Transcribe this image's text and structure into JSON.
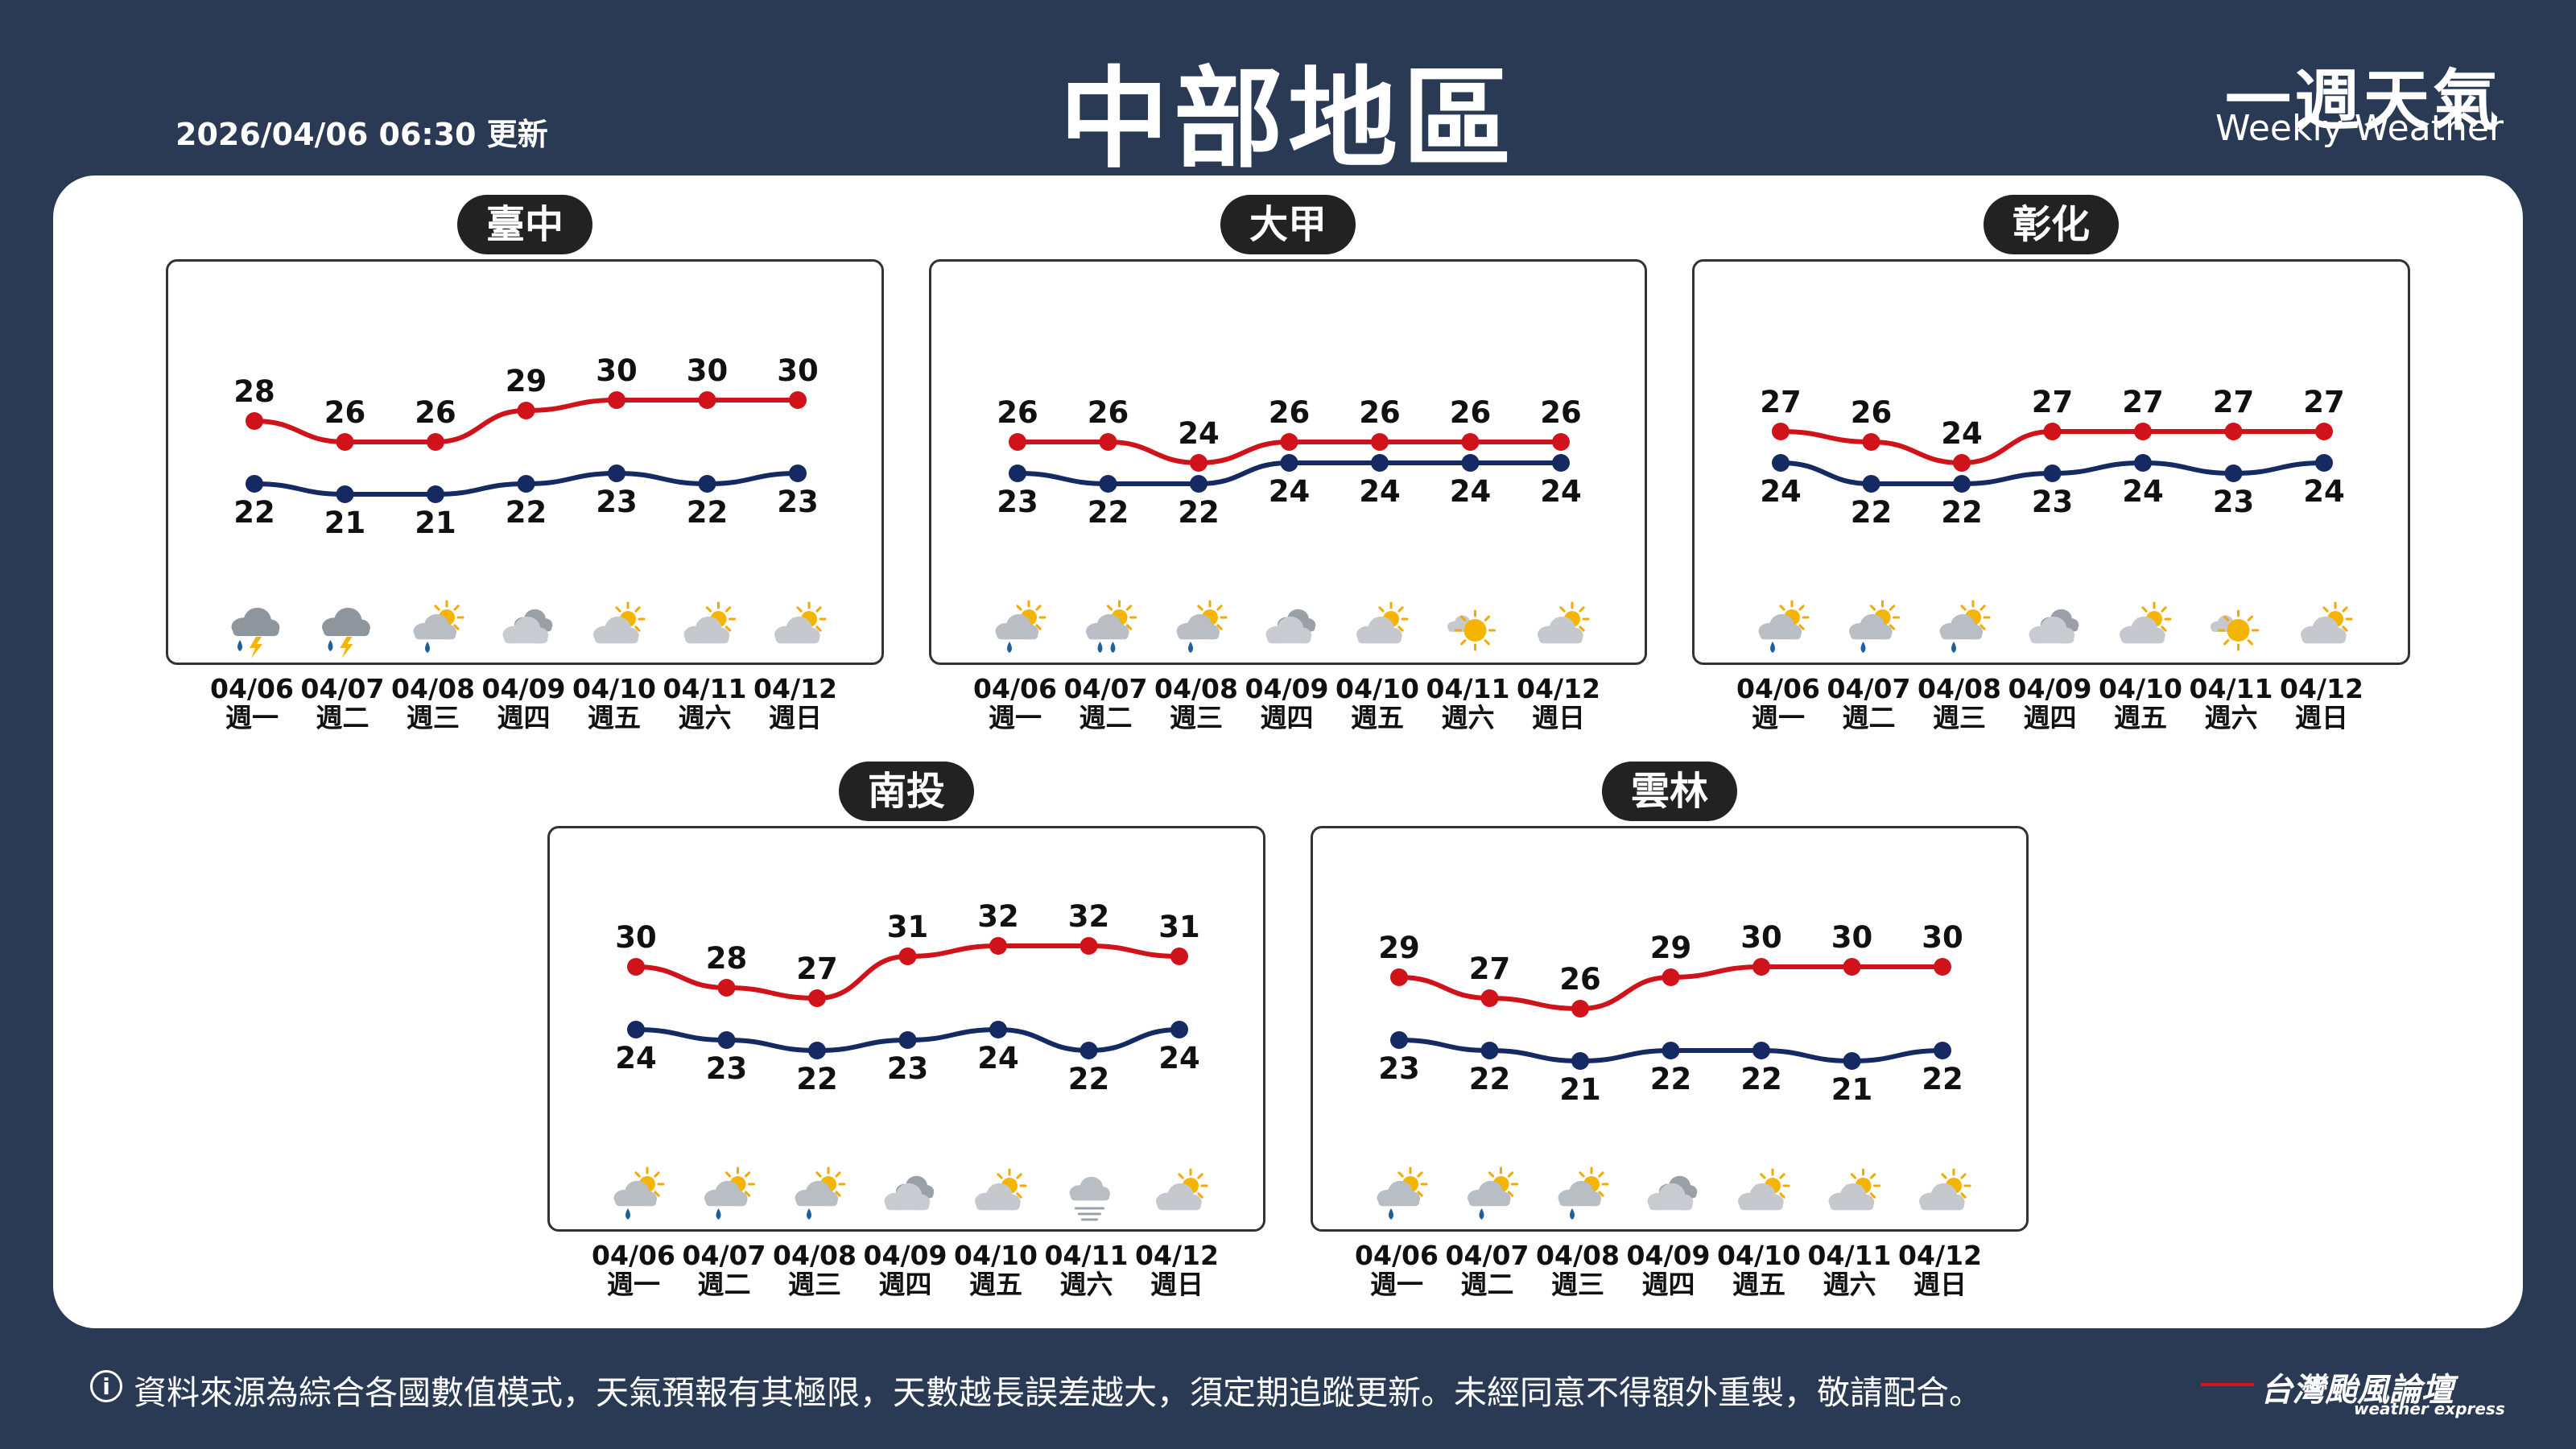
{
  "header": {
    "update_time": "2026/04/06 06:30 更新",
    "title": "中部地區",
    "brand_cn": "一週天氣",
    "brand_en": "Weekly Weather"
  },
  "footer": {
    "info_symbol": "i",
    "disclaimer": "資料來源為綜合各國數值模式，天氣預報有其極限，天數越長誤差越大，須定期追蹤更新。未經同意不得額外重製，敬請配合。",
    "logo": "台灣颱風論壇",
    "logo_sub": "weather express"
  },
  "colors": {
    "high": "#d0121b",
    "low": "#152a63",
    "background": "#2a3a55"
  },
  "chart_data": [
    {
      "type": "line",
      "title": "臺中",
      "x": [
        "04/06",
        "04/07",
        "04/08",
        "04/09",
        "04/10",
        "04/11",
        "04/12"
      ],
      "weekdays": [
        "週一",
        "週二",
        "週三",
        "週四",
        "週五",
        "週六",
        "週日"
      ],
      "series": [
        {
          "key": "high",
          "values": [
            28,
            26,
            26,
            29,
            30,
            30,
            30
          ]
        },
        {
          "key": "low",
          "values": [
            22,
            21,
            21,
            22,
            23,
            22,
            23
          ]
        }
      ],
      "icons": [
        "thunderstorm-icon",
        "thunderstorm-icon",
        "sun-cloud-rain-icon",
        "cloudy-icon",
        "partly-cloudy-icon",
        "partly-cloudy-icon",
        "partly-cloudy-icon"
      ]
    },
    {
      "type": "line",
      "title": "大甲",
      "x": [
        "04/06",
        "04/07",
        "04/08",
        "04/09",
        "04/10",
        "04/11",
        "04/12"
      ],
      "weekdays": [
        "週一",
        "週二",
        "週三",
        "週四",
        "週五",
        "週六",
        "週日"
      ],
      "series": [
        {
          "key": "high",
          "values": [
            26,
            26,
            24,
            26,
            26,
            26,
            26
          ]
        },
        {
          "key": "low",
          "values": [
            23,
            22,
            22,
            24,
            24,
            24,
            24
          ]
        }
      ],
      "icons": [
        "sun-cloud-rain-icon",
        "sun-cloud-heavy-rain-icon",
        "sun-cloud-rain-icon",
        "cloudy-icon",
        "partly-cloudy-icon",
        "mostly-sunny-icon",
        "partly-cloudy-icon"
      ]
    },
    {
      "type": "line",
      "title": "彰化",
      "x": [
        "04/06",
        "04/07",
        "04/08",
        "04/09",
        "04/10",
        "04/11",
        "04/12"
      ],
      "weekdays": [
        "週一",
        "週二",
        "週三",
        "週四",
        "週五",
        "週六",
        "週日"
      ],
      "series": [
        {
          "key": "high",
          "values": [
            27,
            26,
            24,
            27,
            27,
            27,
            27
          ]
        },
        {
          "key": "low",
          "values": [
            24,
            22,
            22,
            23,
            24,
            23,
            24
          ]
        }
      ],
      "icons": [
        "sun-cloud-rain-icon",
        "sun-cloud-rain-icon",
        "sun-cloud-rain-icon",
        "cloudy-icon",
        "partly-cloudy-icon",
        "mostly-sunny-icon",
        "partly-cloudy-icon"
      ]
    },
    {
      "type": "line",
      "title": "南投",
      "x": [
        "04/06",
        "04/07",
        "04/08",
        "04/09",
        "04/10",
        "04/11",
        "04/12"
      ],
      "weekdays": [
        "週一",
        "週二",
        "週三",
        "週四",
        "週五",
        "週六",
        "週日"
      ],
      "series": [
        {
          "key": "high",
          "values": [
            30,
            28,
            27,
            31,
            32,
            32,
            31
          ]
        },
        {
          "key": "low",
          "values": [
            24,
            23,
            22,
            23,
            24,
            22,
            24
          ]
        }
      ],
      "icons": [
        "sun-cloud-rain-icon",
        "sun-cloud-rain-icon",
        "sun-cloud-rain-icon",
        "cloudy-icon",
        "partly-cloudy-icon",
        "fog-icon",
        "partly-cloudy-icon"
      ]
    },
    {
      "type": "line",
      "title": "雲林",
      "x": [
        "04/06",
        "04/07",
        "04/08",
        "04/09",
        "04/10",
        "04/11",
        "04/12"
      ],
      "weekdays": [
        "週一",
        "週二",
        "週三",
        "週四",
        "週五",
        "週六",
        "週日"
      ],
      "series": [
        {
          "key": "high",
          "values": [
            29,
            27,
            26,
            29,
            30,
            30,
            30
          ]
        },
        {
          "key": "low",
          "values": [
            23,
            22,
            21,
            22,
            22,
            21,
            22
          ]
        }
      ],
      "icons": [
        "sun-cloud-rain-icon",
        "sun-cloud-rain-icon",
        "sun-cloud-rain-icon",
        "cloudy-icon",
        "partly-cloudy-icon",
        "partly-cloudy-icon",
        "partly-cloudy-icon"
      ]
    }
  ]
}
